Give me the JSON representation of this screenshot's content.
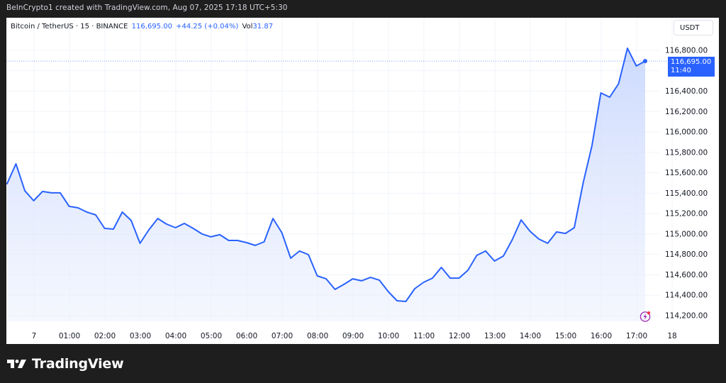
{
  "caption": "BeInCrypto1 created with TradingView.com, Aug 07, 2025 17:18 UTC+5:30",
  "legend": {
    "symbol": "Bitcoin / TetherUS · 15 · BINANCE",
    "price": "116,695.00",
    "change": "+44.25 (+0.04%)",
    "vol_label": "Vol",
    "vol_value": "31.87"
  },
  "currency_button": "USDT",
  "last_price_tag": {
    "price": "116,695.00",
    "countdown": "11:40"
  },
  "footer_logo": "TradingView",
  "colors": {
    "line": "#2962ff",
    "fill_top": "#c7d6fd",
    "price_tag_bg": "#2962ff",
    "background": "#1e1e1e",
    "panel": "#ffffff",
    "bolt_icon": "#9c27b0",
    "bolt_dot": "#f23645"
  },
  "chart_data": {
    "type": "area",
    "title": "Bitcoin / TetherUS · 15 · BINANCE",
    "xlabel": "",
    "ylabel": "USDT",
    "interval_minutes": 15,
    "x_tick_labels": [
      "7",
      "01:00",
      "02:00",
      "03:00",
      "04:00",
      "05:00",
      "06:00",
      "07:00",
      "08:00",
      "09:00",
      "10:00",
      "11:00",
      "12:00",
      "13:00",
      "14:00",
      "15:00",
      "16:00",
      "17:00",
      "18"
    ],
    "y_tick_labels": [
      "114,200.00",
      "114,400.00",
      "114,600.00",
      "114,800.00",
      "115,000.00",
      "115,200.00",
      "115,400.00",
      "115,600.00",
      "115,800.00",
      "116,000.00",
      "116,200.00",
      "116,400.00",
      "116,800.00"
    ],
    "ylim": [
      114100,
      116900
    ],
    "grid": true,
    "values": [
      115493,
      115688,
      115424,
      115326,
      115417,
      115403,
      115403,
      115271,
      115257,
      115215,
      115187,
      115055,
      115048,
      115215,
      115132,
      114909,
      115041,
      115152,
      115097,
      115062,
      115104,
      115055,
      115000,
      114972,
      114993,
      114937,
      114937,
      114916,
      114888,
      114923,
      115152,
      115013,
      114763,
      114833,
      114798,
      114589,
      114561,
      114457,
      114506,
      114561,
      114541,
      114575,
      114548,
      114436,
      114346,
      114339,
      114464,
      114527,
      114568,
      114673,
      114568,
      114568,
      114645,
      114791,
      114833,
      114735,
      114784,
      114944,
      115138,
      115027,
      114951,
      114909,
      115020,
      115006,
      115062,
      115500,
      115868,
      116383,
      116341,
      116473,
      116821,
      116647,
      116695
    ],
    "last_value": 116695.0,
    "last_label": "116,695.00"
  }
}
